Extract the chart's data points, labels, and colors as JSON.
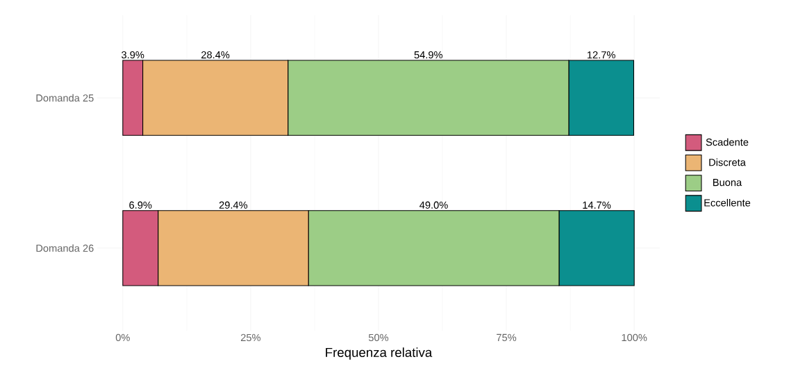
{
  "chart_data": {
    "type": "bar",
    "orientation": "horizontal",
    "stacked": true,
    "categories": [
      "Domanda 25",
      "Domanda 26"
    ],
    "series": [
      {
        "name": "Scadente",
        "color": "#d35b7d",
        "values": [
          3.9,
          6.9
        ],
        "value_labels": [
          "3.9%",
          "6.9%"
        ]
      },
      {
        "name": "Discreta",
        "color": "#ebb574",
        "values": [
          28.4,
          29.4
        ],
        "value_labels": [
          "28.4%",
          "29.4%"
        ]
      },
      {
        "name": "Buona",
        "color": "#9ccd86",
        "values": [
          54.9,
          49.0
        ],
        "value_labels": [
          "54.9%",
          "49.0%"
        ]
      },
      {
        "name": "Eccellente",
        "color": "#0b8f8f",
        "values": [
          12.7,
          14.7
        ],
        "value_labels": [
          "12.7%",
          "14.7%"
        ]
      }
    ],
    "xlabel": "Frequenza relativa",
    "xlim": [
      -5,
      105
    ],
    "xticks": [
      {
        "value": 0,
        "label": "0%"
      },
      {
        "value": 25,
        "label": "25%"
      },
      {
        "value": 50,
        "label": "50%"
      },
      {
        "value": 75,
        "label": "75%"
      },
      {
        "value": 100,
        "label": "100%"
      }
    ],
    "grid": true,
    "legend": "right"
  }
}
